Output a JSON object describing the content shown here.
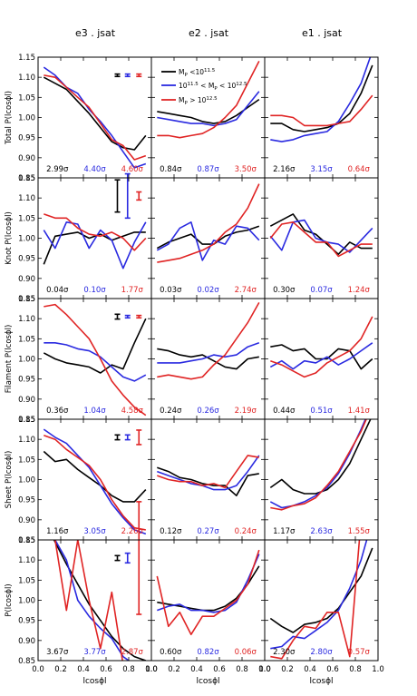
{
  "colors": {
    "low": "#000000",
    "mid": "#2a2ae0",
    "high": "#e02424"
  },
  "chart_data": {
    "type": "line",
    "xlabel": "lcosϕl",
    "xlim": [
      0.0,
      1.0
    ],
    "xticks": [
      "0.0",
      "0.2",
      "0.4",
      "0.6",
      "0.8",
      "1.0"
    ],
    "ylim": [
      0.85,
      1.15
    ],
    "yticks": [
      "0.85",
      "0.90",
      "0.95",
      "1.00",
      "1.05",
      "1.10",
      "1.15"
    ],
    "columns": [
      "e3 . jsat",
      "e2 . jsat",
      "e1 . jsat"
    ],
    "rows": [
      "Total P(lcosϕl)",
      "Knot P(lcosϕl)",
      "Filament P(lcosϕl)",
      "Sheet P(lcosϕl)",
      "P(lcosϕl)"
    ],
    "legend": [
      "M_p < 10^11.5",
      "10^11.5 < M_p < 10^12.5",
      "M_p > 10^12.5"
    ],
    "x": [
      0.05,
      0.15,
      0.25,
      0.35,
      0.45,
      0.55,
      0.65,
      0.75,
      0.85,
      0.95
    ],
    "panels": [
      {
        "row": 0,
        "col": 0,
        "significance": [
          "2.99σ",
          "4.40σ",
          "4.60σ"
        ],
        "errorbars": [
          0.003,
          0.003,
          0.003
        ],
        "series": [
          [
            1.1,
            1.085,
            1.07,
            1.04,
            1.01,
            0.975,
            0.94,
            0.925,
            0.92,
            0.955
          ],
          [
            1.125,
            1.105,
            1.075,
            1.06,
            1.02,
            0.99,
            0.955,
            0.915,
            0.875,
            0.885
          ],
          [
            1.105,
            1.1,
            1.075,
            1.05,
            1.025,
            0.985,
            0.945,
            0.93,
            0.895,
            0.905
          ]
        ]
      },
      {
        "row": 0,
        "col": 1,
        "significance": [
          "0.84σ",
          "0.87σ",
          "3.50σ"
        ],
        "errorbars": [
          0.0,
          0.0,
          0.0
        ],
        "series": [
          [
            1.015,
            1.01,
            1.005,
            1.0,
            0.99,
            0.985,
            0.99,
            1.005,
            1.025,
            1.045
          ],
          [
            1.0,
            0.995,
            0.99,
            0.985,
            0.985,
            0.98,
            0.985,
            0.995,
            1.03,
            1.065
          ],
          [
            0.955,
            0.955,
            0.95,
            0.955,
            0.96,
            0.975,
            1.0,
            1.03,
            1.085,
            1.14
          ]
        ]
      },
      {
        "row": 0,
        "col": 2,
        "significance": [
          "2.16σ",
          "3.15σ",
          "0.64σ"
        ],
        "errorbars": [
          0.0,
          0.0,
          0.0
        ],
        "series": [
          [
            0.985,
            0.985,
            0.97,
            0.965,
            0.97,
            0.975,
            0.985,
            1.01,
            1.06,
            1.13
          ],
          [
            0.945,
            0.94,
            0.945,
            0.955,
            0.96,
            0.965,
            0.99,
            1.035,
            1.085,
            1.165
          ],
          [
            1.005,
            1.005,
            1.0,
            0.98,
            0.98,
            0.98,
            0.985,
            0.99,
            1.02,
            1.055
          ]
        ]
      },
      {
        "row": 1,
        "col": 0,
        "significance": [
          "0.04σ",
          "0.10σ",
          "1.77σ"
        ],
        "errorbars": [
          0.04,
          0.055,
          0.01
        ],
        "series": [
          [
            0.935,
            1.005,
            1.01,
            1.015,
            1.0,
            1.01,
            0.995,
            1.005,
            1.015,
            1.015
          ],
          [
            1.02,
            0.975,
            1.04,
            1.035,
            0.975,
            1.02,
            0.995,
            0.925,
            0.99,
            1.04
          ],
          [
            1.06,
            1.05,
            1.05,
            1.025,
            1.01,
            1.005,
            1.015,
            1.0,
            0.97,
            1.0
          ]
        ]
      },
      {
        "row": 1,
        "col": 1,
        "significance": [
          "0.03σ",
          "0.02σ",
          "2.74σ"
        ],
        "errorbars": [
          0.0,
          0.0,
          0.0
        ],
        "series": [
          [
            0.975,
            0.99,
            1.0,
            1.01,
            0.985,
            0.985,
            1.005,
            1.015,
            1.02,
            1.03
          ],
          [
            0.97,
            0.985,
            1.025,
            1.04,
            0.945,
            0.995,
            0.985,
            1.03,
            1.025,
            0.995
          ],
          [
            0.94,
            0.945,
            0.95,
            0.96,
            0.97,
            0.985,
            1.015,
            1.035,
            1.075,
            1.135
          ]
        ]
      },
      {
        "row": 1,
        "col": 2,
        "significance": [
          "0.30σ",
          "0.07σ",
          "1.24σ"
        ],
        "errorbars": [
          0.0,
          0.0,
          0.0
        ],
        "series": [
          [
            1.03,
            1.045,
            1.06,
            1.02,
            1.01,
            0.985,
            0.96,
            0.99,
            0.975,
            0.975
          ],
          [
            1.005,
            0.97,
            1.04,
            1.045,
            1.0,
            0.99,
            0.985,
            0.965,
            0.995,
            1.025
          ],
          [
            1.0,
            1.035,
            1.04,
            1.015,
            0.99,
            0.99,
            0.955,
            0.97,
            0.985,
            0.985
          ]
        ]
      },
      {
        "row": 2,
        "col": 0,
        "significance": [
          "0.36σ",
          "1.04σ",
          "4.58σ"
        ],
        "errorbars": [
          0.006,
          0.003,
          0.003
        ],
        "series": [
          [
            1.015,
            1.0,
            0.99,
            0.985,
            0.98,
            0.965,
            0.985,
            0.975,
            1.04,
            1.1
          ],
          [
            1.04,
            1.04,
            1.035,
            1.025,
            1.02,
            1.005,
            0.98,
            0.955,
            0.945,
            0.96
          ],
          [
            1.13,
            1.135,
            1.11,
            1.08,
            1.05,
            1.0,
            0.945,
            0.91,
            0.88,
            0.86
          ]
        ]
      },
      {
        "row": 2,
        "col": 1,
        "significance": [
          "0.24σ",
          "0.26σ",
          "2.19σ"
        ],
        "errorbars": [
          0.0,
          0.0,
          0.0
        ],
        "series": [
          [
            1.025,
            1.02,
            1.01,
            1.005,
            1.01,
            0.995,
            0.98,
            0.975,
            1.0,
            1.005
          ],
          [
            0.99,
            0.99,
            0.99,
            0.995,
            1.0,
            1.01,
            1.005,
            1.01,
            1.03,
            1.04
          ],
          [
            0.955,
            0.96,
            0.955,
            0.95,
            0.955,
            0.985,
            1.01,
            1.05,
            1.09,
            1.14
          ]
        ]
      },
      {
        "row": 2,
        "col": 2,
        "significance": [
          "0.44σ",
          "0.51σ",
          "1.41σ"
        ],
        "errorbars": [
          0.0,
          0.0,
          0.0
        ],
        "series": [
          [
            1.03,
            1.035,
            1.02,
            1.025,
            1.0,
            1.0,
            1.025,
            1.02,
            0.975,
            1.0
          ],
          [
            0.98,
            0.995,
            0.975,
            0.995,
            0.99,
            1.005,
            0.985,
            1.0,
            1.02,
            1.04
          ],
          [
            0.995,
            0.985,
            0.97,
            0.955,
            0.965,
            0.99,
            1.005,
            1.02,
            1.05,
            1.105
          ]
        ]
      },
      {
        "row": 3,
        "col": 0,
        "significance": [
          "1.16σ",
          "3.05σ",
          "2.26σ"
        ],
        "errorbars": [
          0.006,
          0.006,
          0.018
        ],
        "series": [
          [
            1.07,
            1.045,
            1.05,
            1.025,
            1.005,
            0.985,
            0.96,
            0.945,
            0.945,
            0.975
          ],
          [
            1.125,
            1.105,
            1.09,
            1.06,
            1.03,
            0.985,
            0.94,
            0.905,
            0.875,
            0.865
          ],
          [
            1.11,
            1.1,
            1.075,
            1.055,
            1.035,
            1.0,
            0.95,
            0.91,
            0.88,
            0.875
          ]
        ]
      },
      {
        "row": 3,
        "col": 1,
        "significance": [
          "0.12σ",
          "0.27σ",
          "0.24σ"
        ],
        "errorbars": [
          0.0,
          0.0,
          0.0
        ],
        "series": [
          [
            1.03,
            1.02,
            1.005,
            1.0,
            0.99,
            0.985,
            0.985,
            0.96,
            1.01,
            1.015
          ],
          [
            1.02,
            1.01,
            1.0,
            0.99,
            0.985,
            0.975,
            0.975,
            0.985,
            1.02,
            1.06
          ],
          [
            1.01,
            1.0,
            0.995,
            0.995,
            0.985,
            0.99,
            0.98,
            1.02,
            1.06,
            1.055
          ]
        ]
      },
      {
        "row": 3,
        "col": 2,
        "significance": [
          "1.17σ",
          "2.63σ",
          "1.55σ"
        ],
        "errorbars": [
          0.0,
          0.0,
          0.0
        ],
        "series": [
          [
            0.98,
            1.0,
            0.975,
            0.965,
            0.965,
            0.975,
            1.0,
            1.04,
            1.1,
            1.16
          ],
          [
            0.945,
            0.93,
            0.935,
            0.945,
            0.96,
            0.98,
            1.015,
            1.065,
            1.125,
            1.19
          ],
          [
            0.93,
            0.925,
            0.935,
            0.94,
            0.955,
            0.985,
            1.02,
            1.07,
            1.12,
            1.185
          ]
        ]
      },
      {
        "row": 4,
        "col": 0,
        "significance": [
          "3.67σ",
          "3.77σ",
          "2.87σ"
        ],
        "errorbars": [
          0.006,
          0.012,
          0.14
        ],
        "series": [
          [
            1.2,
            1.145,
            1.09,
            1.04,
            0.99,
            0.95,
            0.91,
            0.88,
            0.86,
            0.85
          ],
          [
            1.2,
            1.15,
            1.1,
            1.0,
            0.96,
            0.93,
            0.905,
            0.86,
            0.84,
            0.83
          ],
          [
            1.2,
            1.15,
            0.975,
            1.15,
            1.0,
            0.88,
            1.02,
            0.84,
            0.82,
            0.8
          ]
        ]
      },
      {
        "row": 4,
        "col": 1,
        "significance": [
          "0.60σ",
          "0.82σ",
          "0.06σ"
        ],
        "errorbars": [
          0.0,
          0.0,
          0.0
        ],
        "series": [
          [
            0.995,
            0.99,
            0.985,
            0.98,
            0.975,
            0.975,
            0.985,
            1.005,
            1.04,
            1.085
          ],
          [
            0.975,
            0.985,
            0.99,
            0.975,
            0.975,
            0.97,
            0.975,
            0.995,
            1.05,
            1.115
          ],
          [
            1.06,
            0.935,
            0.97,
            0.915,
            0.96,
            0.96,
            0.98,
            1.0,
            1.04,
            1.125
          ]
        ]
      },
      {
        "row": 4,
        "col": 2,
        "significance": [
          "2.30σ",
          "2.80σ",
          "0.57σ"
        ],
        "errorbars": [
          0.0,
          0.0,
          0.0
        ],
        "series": [
          [
            0.955,
            0.935,
            0.92,
            0.94,
            0.945,
            0.955,
            0.98,
            1.02,
            1.06,
            1.13
          ],
          [
            0.88,
            0.885,
            0.91,
            0.905,
            0.925,
            0.945,
            0.975,
            1.03,
            1.1,
            1.2
          ],
          [
            0.86,
            0.855,
            0.9,
            0.935,
            0.93,
            0.97,
            0.97,
            0.86,
            1.2,
            1.2
          ]
        ]
      }
    ]
  }
}
